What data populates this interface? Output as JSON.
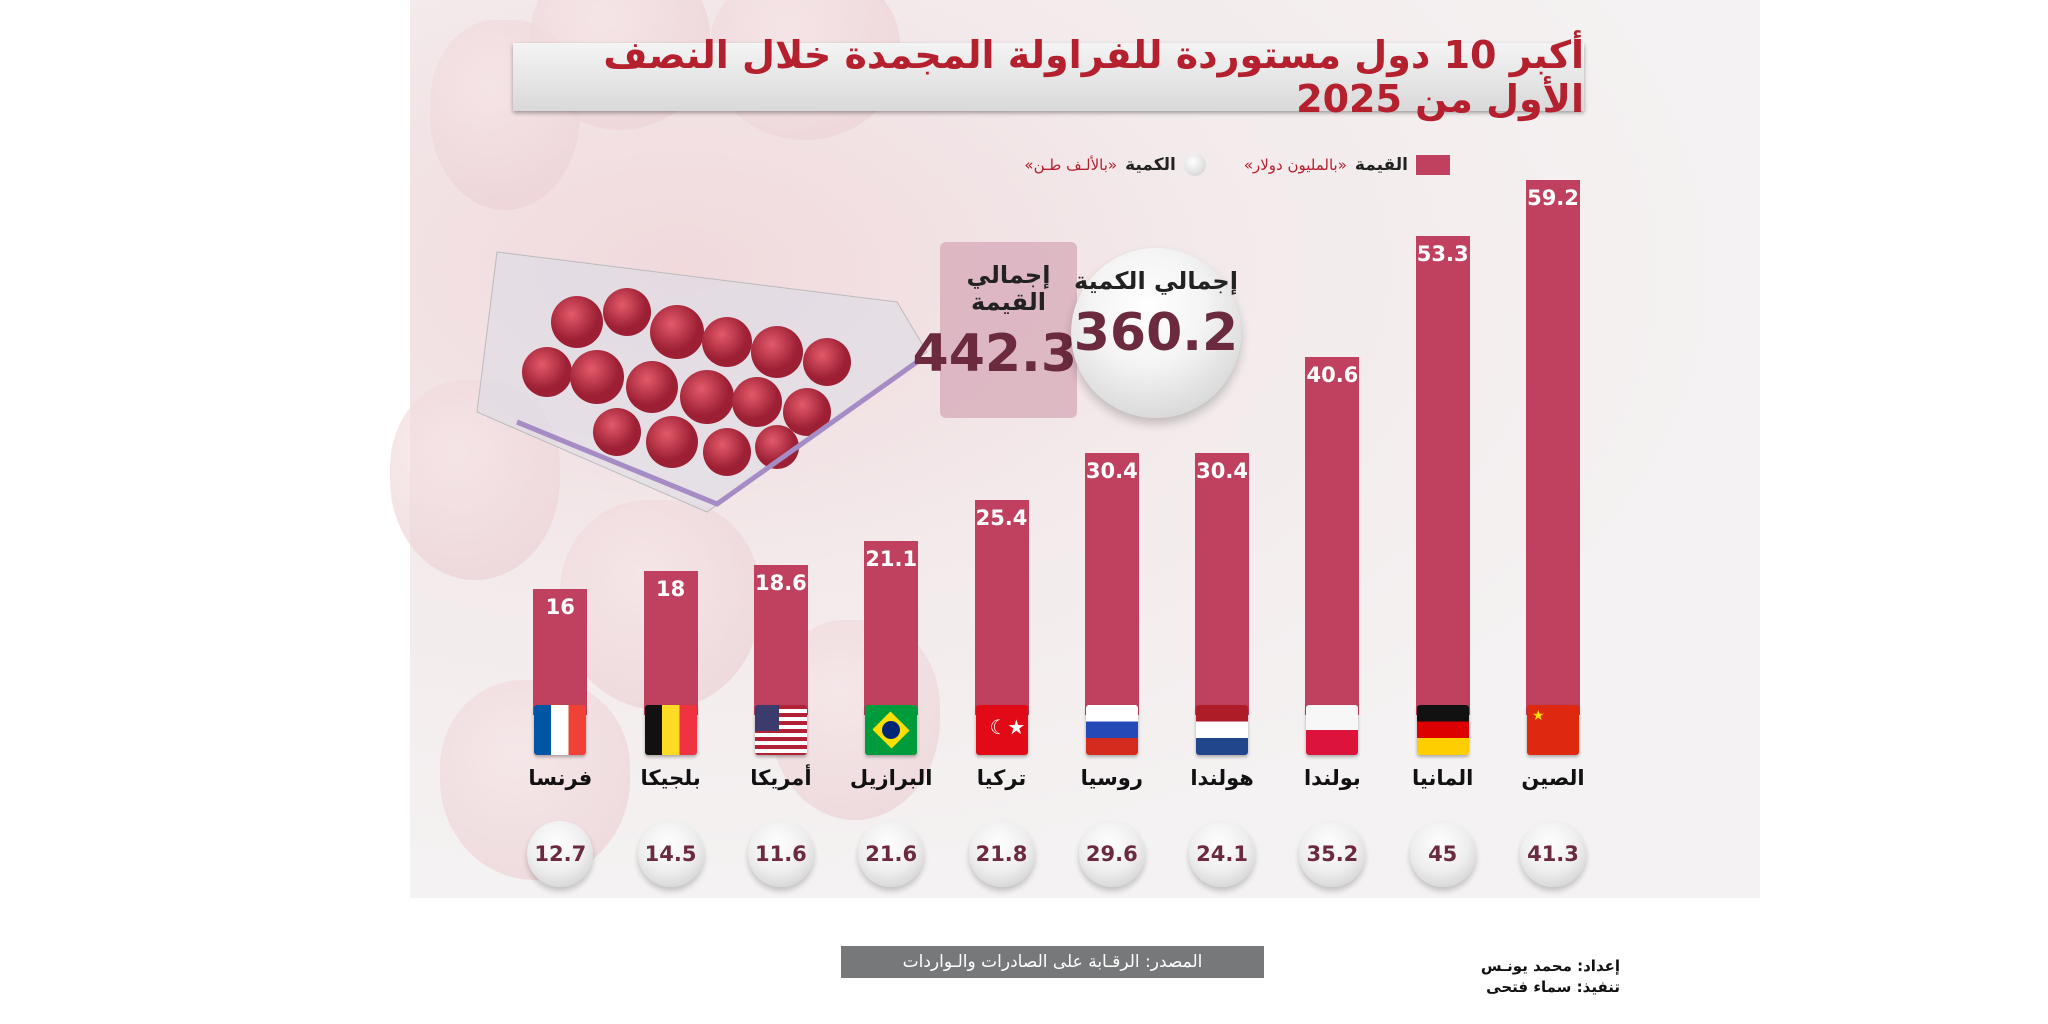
{
  "chart_data": {
    "type": "bar",
    "title": "أكبر 10 دول مستوردة للفراولة المجمدة خلال النصف الأول من 2025",
    "categories": [
      "الصين",
      "المانيا",
      "بولندا",
      "هولندا",
      "روسيا",
      "تركيا",
      "البرازيل",
      "أمريكا",
      "بلجيكا",
      "فرنسا"
    ],
    "flags": [
      "china",
      "germany",
      "poland",
      "netherlands",
      "russia",
      "turkey",
      "brazil",
      "usa",
      "belgium",
      "france"
    ],
    "series": [
      {
        "name": "القيمة",
        "unit": "«بالمليون دولار»",
        "values": [
          59.2,
          53.3,
          40.6,
          30.4,
          30.4,
          25.4,
          21.1,
          18.6,
          18,
          16
        ],
        "color": "#c0415f"
      },
      {
        "name": "الكمية",
        "unit": "«بالألـف طـن»",
        "values": [
          41.3,
          45,
          35.2,
          24.1,
          29.6,
          21.8,
          21.6,
          11.6,
          14.5,
          12.7
        ]
      }
    ],
    "legend": "top",
    "totals": {
      "value_label": "إجمالي القيمة",
      "value": "442.3",
      "quantity_label": "إجمالي الكمية",
      "quantity": "360.2"
    }
  },
  "footer": {
    "source": "المصدر: الرقـابة على الصادرات والـواردات",
    "prepared_by": "إعداد: محمد يونـس",
    "executed_by": "تنفيذ: سماء فتحى"
  },
  "colors": {
    "bar": "#c0415f",
    "title": "#b5202e",
    "number": "#6b2a3e"
  }
}
